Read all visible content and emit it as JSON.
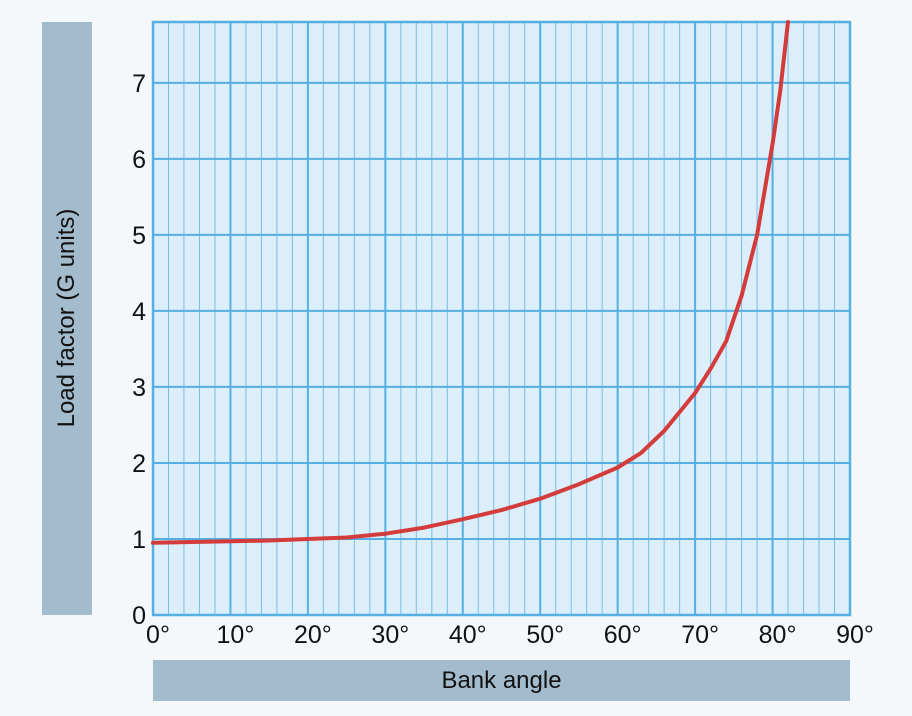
{
  "chart_data": {
    "type": "line",
    "title": "",
    "xlabel": "Bank angle",
    "ylabel": "Load factor (G units)",
    "xlim": [
      0,
      90
    ],
    "ylim": [
      0,
      7.8
    ],
    "x_ticks": [
      0,
      10,
      20,
      30,
      40,
      50,
      60,
      70,
      80,
      90
    ],
    "x_tick_labels": [
      "0°",
      "10°",
      "20°",
      "30°",
      "40°",
      "50°",
      "60°",
      "70°",
      "80°",
      "90°"
    ],
    "y_ticks": [
      0,
      1,
      2,
      3,
      4,
      5,
      6,
      7
    ],
    "y_tick_labels": [
      "0",
      "1",
      "2",
      "3",
      "4",
      "5",
      "6",
      "7"
    ],
    "grid": true,
    "legend": "none",
    "colors": {
      "plot_bg": "#dbeef9",
      "grid": "#55afe3",
      "line": "#d43b3b",
      "label_box": "#a3bccd"
    },
    "series": [
      {
        "x": [
          0,
          5,
          10,
          15,
          20,
          25,
          30,
          35,
          40,
          45,
          50,
          55,
          60,
          63,
          66,
          70,
          72,
          74,
          76,
          78,
          80,
          81,
          82
        ],
        "y": [
          0.95,
          0.96,
          0.97,
          0.98,
          1.0,
          1.02,
          1.07,
          1.15,
          1.26,
          1.38,
          1.53,
          1.72,
          1.94,
          2.13,
          2.42,
          2.92,
          3.24,
          3.6,
          4.2,
          5.0,
          6.2,
          6.9,
          7.8
        ]
      }
    ]
  }
}
